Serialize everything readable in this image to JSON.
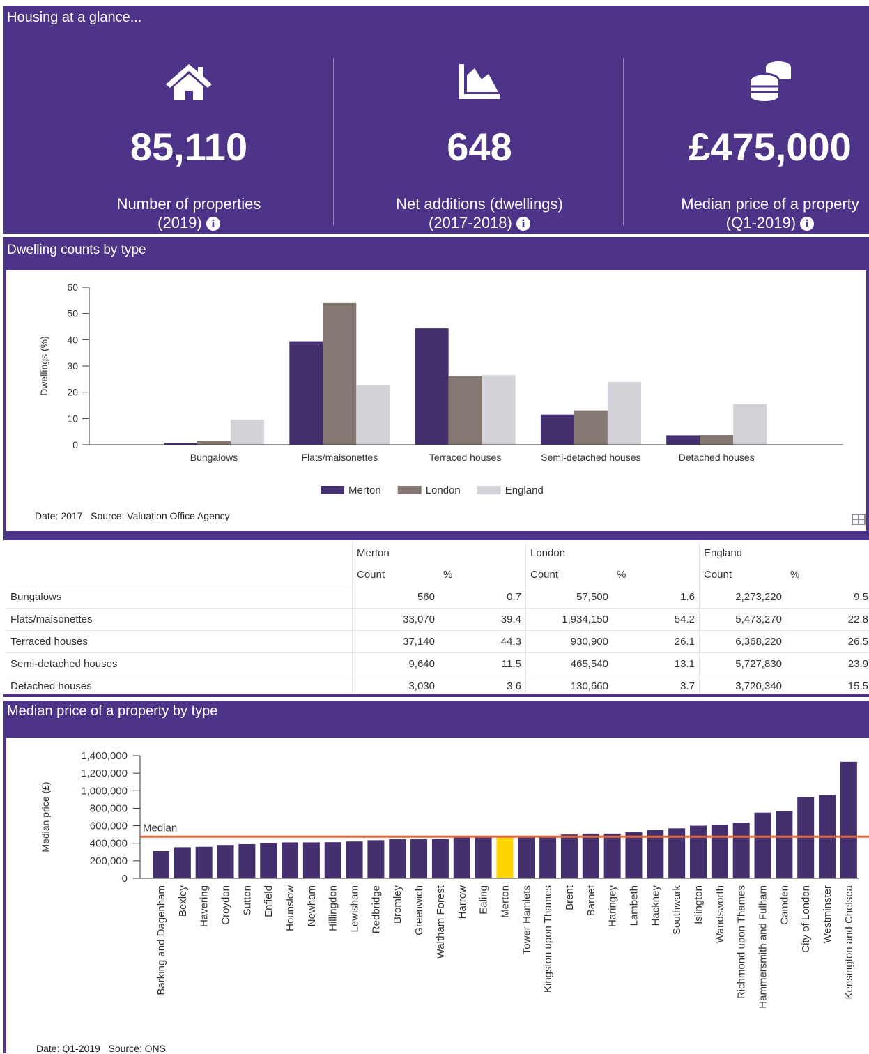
{
  "glance": {
    "title": "Housing at a glance...",
    "stats": [
      {
        "value": "85,110",
        "label": "Number of properties",
        "period": "(2019)"
      },
      {
        "value": "648",
        "label": "Net additions (dwellings)",
        "period": "(2017-2018)"
      },
      {
        "value": "£475,000",
        "label": "Median price of a property",
        "period": "(Q1-2019)"
      }
    ]
  },
  "chart_data": [
    {
      "type": "bar",
      "title": "Dwelling counts by type",
      "y_label": "Dwellings (%)",
      "categories": [
        "Bungalows",
        "Flats/maisonettes",
        "Terraced houses",
        "Semi-detached houses",
        "Detached houses"
      ],
      "series": [
        {
          "name": "Merton",
          "color": "#44306e",
          "values": [
            0.7,
            39.4,
            44.3,
            11.5,
            3.6
          ]
        },
        {
          "name": "London",
          "color": "#857872",
          "values": [
            1.6,
            54.2,
            26.1,
            13.1,
            3.7
          ]
        },
        {
          "name": "England",
          "color": "#d3d2d8",
          "values": [
            9.5,
            22.8,
            26.5,
            23.9,
            15.5
          ]
        }
      ],
      "ylim": [
        0,
        60
      ],
      "yticks": [
        0,
        10,
        20,
        30,
        40,
        50,
        60
      ],
      "legend": "bottom",
      "date": "Date: 2017",
      "source": "Source: Valuation Office Agency"
    },
    {
      "type": "bar",
      "title": "Median price of a property by type",
      "y_label": "Median price (£)",
      "categories": [
        "Barking and Dagenham",
        "Bexley",
        "Havering",
        "Croydon",
        "Sutton",
        "Enfield",
        "Hounslow",
        "Newham",
        "Hillingdon",
        "Lewisham",
        "Redbridge",
        "Bromley",
        "Greenwich",
        "Waltham Forest",
        "Harrow",
        "Ealing",
        "Merton",
        "Tower Hamlets",
        "Kingston upon Thames",
        "Brent",
        "Barnet",
        "Haringey",
        "Lambeth",
        "Hackney",
        "Southwark",
        "Islington",
        "Wandsworth",
        "Richmond upon Thames",
        "Hammersmith and Fulham",
        "Camden",
        "City of London",
        "Westminster",
        "Kensington and Chelsea"
      ],
      "values": [
        310000,
        355000,
        360000,
        380000,
        390000,
        400000,
        410000,
        410000,
        412000,
        420000,
        435000,
        445000,
        445000,
        447000,
        470000,
        470000,
        475000,
        485000,
        485000,
        500000,
        510000,
        510000,
        525000,
        550000,
        570000,
        600000,
        610000,
        635000,
        750000,
        770000,
        930000,
        950000,
        1330000
      ],
      "color": "#44306e",
      "highlight_category": "Merton",
      "highlight_color": "#ffd500",
      "reference_line": {
        "value": 475000,
        "label": "Median",
        "color": "#e0683f"
      },
      "ylim": [
        0,
        1400000
      ],
      "yticks": [
        0,
        {
          "value": 200000,
          "label": "200,000"
        },
        {
          "value": 400000,
          "label": "400,000"
        },
        {
          "value": 600000,
          "label": "600,000"
        },
        {
          "value": 800000,
          "label": "800,000"
        },
        {
          "value": 1000000,
          "label": "1,000,000"
        },
        {
          "value": 1200000,
          "label": "1,200,000"
        },
        {
          "value": 1400000,
          "label": "1,400,000"
        }
      ],
      "date": "Date: Q1-2019",
      "source": "Source: ONS"
    }
  ],
  "table": {
    "groups": [
      "Merton",
      "London",
      "England"
    ],
    "subheaders": [
      "Count",
      "%"
    ],
    "rows": [
      [
        "Bungalows",
        "560",
        "0.7",
        "57,500",
        "1.6",
        "2,273,220",
        "9.5"
      ],
      [
        "Flats/maisonettes",
        "33,070",
        "39.4",
        "1,934,150",
        "54.2",
        "5,473,270",
        "22.8"
      ],
      [
        "Terraced houses",
        "37,140",
        "44.3",
        "930,900",
        "26.1",
        "6,368,220",
        "26.5"
      ],
      [
        "Semi-detached houses",
        "9,640",
        "11.5",
        "465,540",
        "13.1",
        "5,727,830",
        "23.9"
      ],
      [
        "Detached houses",
        "3,030",
        "3.6",
        "130,660",
        "3.7",
        "3,720,340",
        "15.5"
      ]
    ]
  }
}
